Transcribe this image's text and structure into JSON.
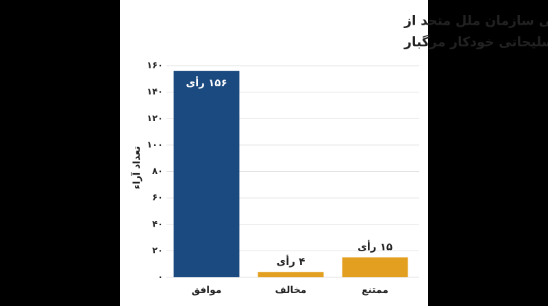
{
  "chart_data": {
    "type": "bar",
    "title": [
      "حمایت قاطع مجمع عمومی سازمان ملل متحد از",
      "قطعنامه سیستم‌های تسلیحاتی خودکار مرگبار"
    ],
    "y_label": "تعداد آراء",
    "categories": [
      "موافق",
      "مخالف",
      "ممتنع"
    ],
    "values": [
      156,
      4,
      15
    ],
    "value_labels": [
      "۱۵۶ رأی",
      "۴ رأی",
      "۱۵ رأی"
    ],
    "colors": [
      "#1b4a80",
      "#e3a020",
      "#e3a020"
    ],
    "ylim": [
      0,
      160
    ],
    "yticks": [
      {
        "value": 0,
        "label": "۰"
      },
      {
        "value": 20,
        "label": "۲۰"
      },
      {
        "value": 40,
        "label": "۴۰"
      },
      {
        "value": 60,
        "label": "۶۰"
      },
      {
        "value": 80,
        "label": "۸۰"
      },
      {
        "value": 100,
        "label": "۱۰۰"
      },
      {
        "value": 120,
        "label": "۱۲۰"
      },
      {
        "value": 140,
        "label": "۱۴۰"
      },
      {
        "value": 160,
        "label": "۱۶۰"
      }
    ],
    "grid": true
  }
}
